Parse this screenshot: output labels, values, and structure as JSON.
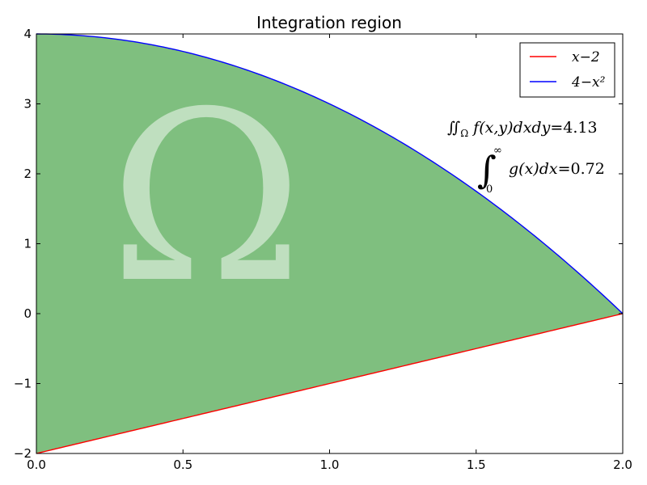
{
  "chart_data": {
    "type": "area",
    "title": "Integration region",
    "xlim": [
      0.0,
      2.0
    ],
    "ylim": [
      -2,
      4
    ],
    "x_ticks": [
      "0.0",
      "0.5",
      "1.0",
      "1.5",
      "2.0"
    ],
    "x_tick_values": [
      0.0,
      0.5,
      1.0,
      1.5,
      2.0
    ],
    "y_ticks": [
      "−2",
      "−1",
      "0",
      "1",
      "2",
      "3",
      "4"
    ],
    "y_tick_values": [
      -2,
      -1,
      0,
      1,
      2,
      3,
      4
    ],
    "series": [
      {
        "name": "x−2",
        "function": "x-2",
        "color": "#ff0000",
        "x": [
          0.0,
          0.5,
          1.0,
          1.5,
          2.0
        ],
        "y": [
          -2.0,
          -1.5,
          -1.0,
          -0.5,
          0.0
        ]
      },
      {
        "name": "4−x²",
        "function": "4-x^2",
        "color": "#0000ff",
        "x": [
          0.0,
          0.5,
          1.0,
          1.5,
          2.0
        ],
        "y": [
          4.0,
          3.75,
          3.0,
          1.75,
          0.0
        ]
      }
    ],
    "fill": {
      "between": [
        "x-2",
        "4-x^2"
      ],
      "color": "#008000",
      "opacity": 0.5
    },
    "region_label": "Ω",
    "annotations": [
      "∬Ω f(x,y)dxdy = 4.13",
      "∫0∞ g(x)dx = 0.72"
    ],
    "legend_position": "top-right",
    "grid": false
  }
}
